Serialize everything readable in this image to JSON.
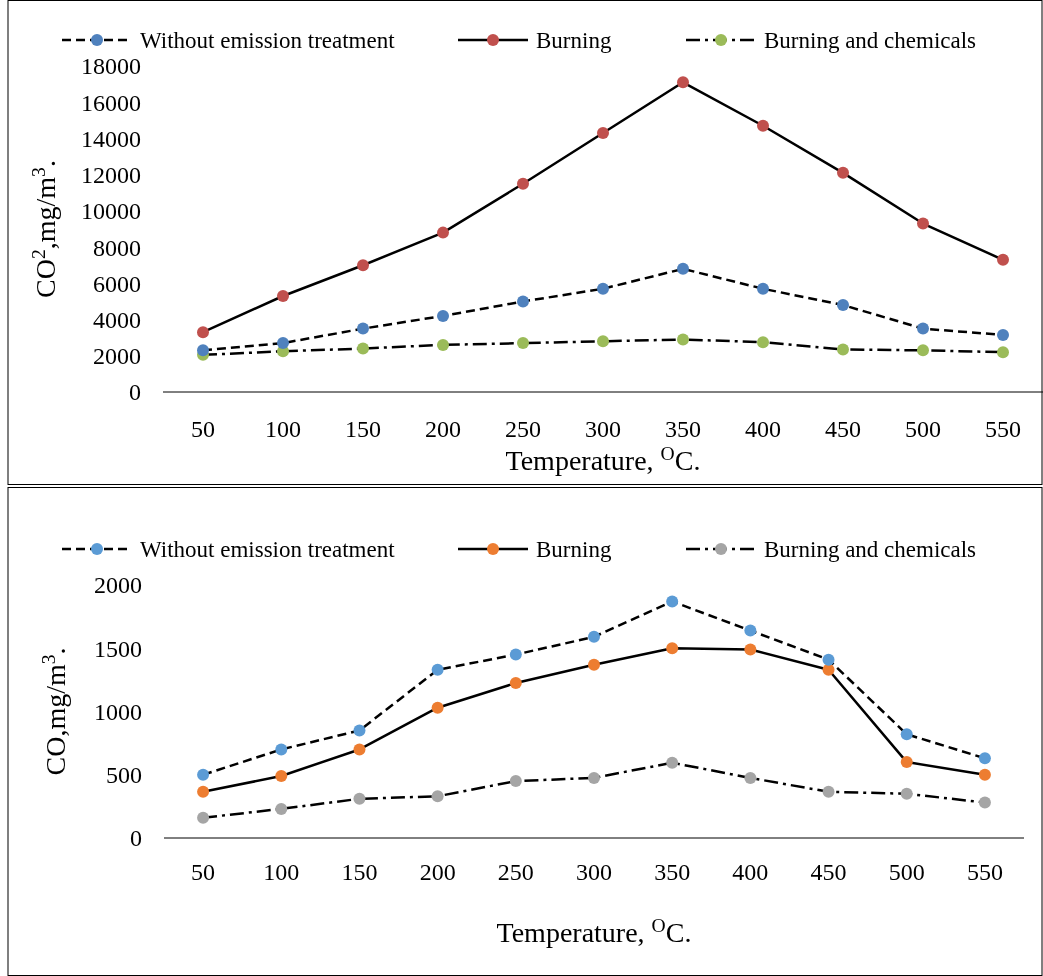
{
  "chart_data": [
    {
      "type": "line",
      "ylabel": "CO$^{2}$,mg/m$^{3}$.",
      "xlabel": "Temperature, $^{O}$C.",
      "categories": [
        "50",
        "100",
        "150",
        "200",
        "250",
        "300",
        "350",
        "400",
        "450",
        "500",
        "550"
      ],
      "ylim": [
        0,
        18000
      ],
      "yticks": [
        0,
        2000,
        4000,
        6000,
        8000,
        10000,
        12000,
        14000,
        16000,
        18000
      ],
      "legend": "top",
      "marker": "circle",
      "grid": false,
      "series": [
        {
          "name": "Without emission treatment",
          "color": "#4f81bd",
          "line_style": "dashed",
          "values": [
            2300,
            2700,
            3500,
            4200,
            5000,
            5700,
            6800,
            5700,
            4800,
            3500,
            3150
          ]
        },
        {
          "name": "Burning",
          "color": "#c0504d",
          "line_style": "solid",
          "values": [
            3300,
            5300,
            7000,
            8800,
            11500,
            14300,
            17100,
            14700,
            12100,
            9300,
            7300
          ]
        },
        {
          "name": "Burning and chemicals",
          "color": "#9bbb59",
          "line_style": "dotted",
          "values": [
            2050,
            2250,
            2400,
            2600,
            2700,
            2800,
            2900,
            2750,
            2350,
            2300,
            2200
          ]
        }
      ]
    },
    {
      "type": "line",
      "ylabel": "CO,mg/m$^{3}$.",
      "xlabel": "Temperature, $^{O}$C.",
      "categories": [
        "50",
        "100",
        "150",
        "200",
        "250",
        "300",
        "350",
        "400",
        "450",
        "500",
        "550"
      ],
      "ylim": [
        0,
        2000
      ],
      "yticks": [
        0,
        500,
        1000,
        1500,
        2000
      ],
      "legend": "top",
      "marker": "circle",
      "grid": false,
      "series": [
        {
          "name": "Without emission treatment",
          "color": "#5b9bd5",
          "line_style": "dashed",
          "values": [
            500,
            700,
            850,
            1330,
            1450,
            1590,
            1870,
            1640,
            1410,
            820,
            630
          ]
        },
        {
          "name": "Burning",
          "color": "#ed7d31",
          "line_style": "solid",
          "values": [
            365,
            490,
            700,
            1030,
            1225,
            1370,
            1500,
            1490,
            1330,
            600,
            500
          ]
        },
        {
          "name": "Burning and chemicals",
          "color": "#a5a5a5",
          "line_style": "dotted",
          "values": [
            160,
            230,
            310,
            330,
            450,
            475,
            595,
            475,
            365,
            350,
            280
          ]
        }
      ]
    }
  ]
}
